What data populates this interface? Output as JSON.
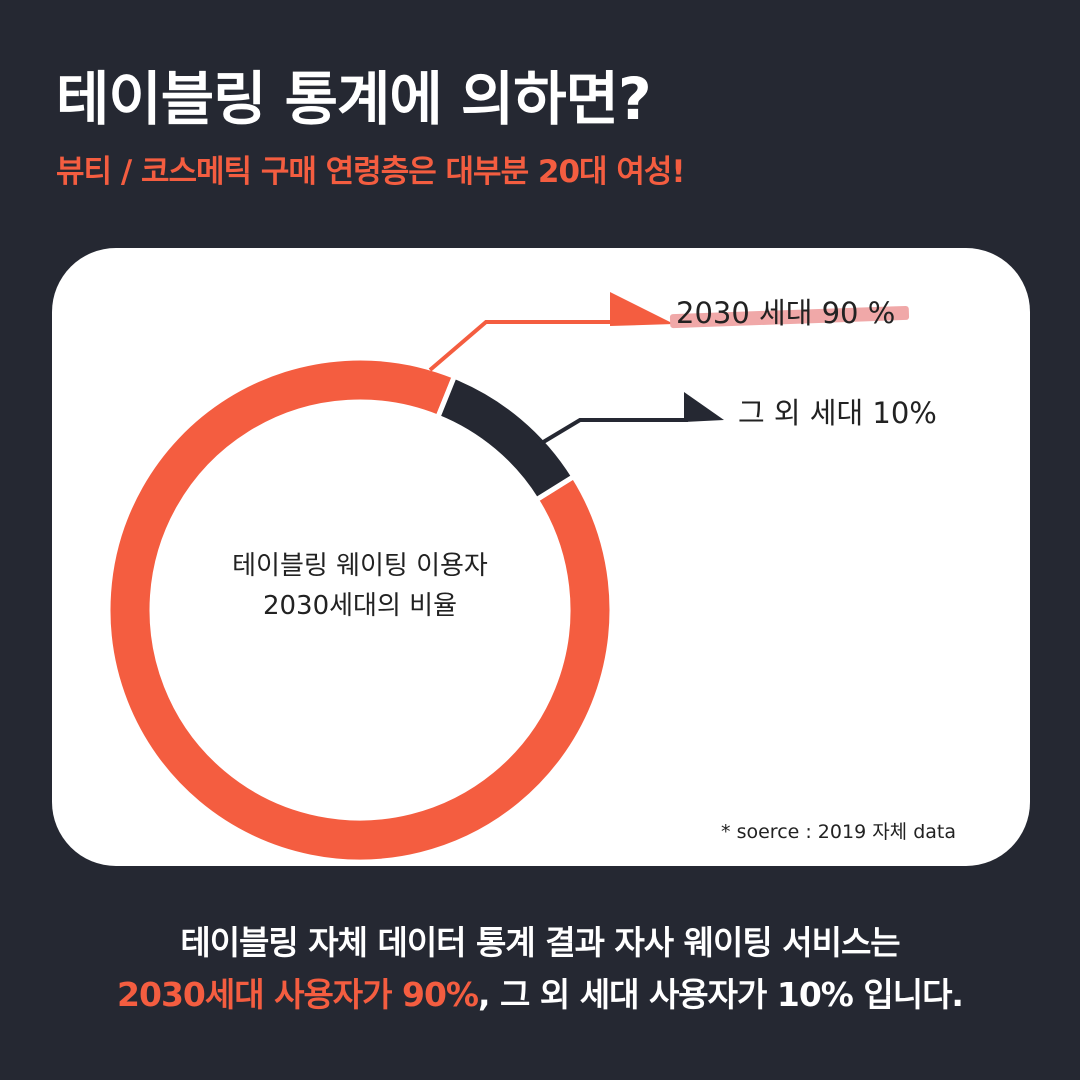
{
  "header": {
    "title": "테이블링 통계에 의하면?",
    "subtitle": "뷰티 / 코스메틱 구매 연령층은 대부분 20대 여성!"
  },
  "chart_data": {
    "type": "pie",
    "variant": "donut",
    "center_label_line1": "테이블링 웨이팅 이용자",
    "center_label_line2": "2030세대의 비율",
    "slices": [
      {
        "label": "2030 세대 90 %",
        "value": 90,
        "color": "#f45d40"
      },
      {
        "label": "그 외 세대 10%",
        "value": 10,
        "color": "#252832"
      }
    ],
    "source": "* soerce : 2019 자체 data"
  },
  "footer": {
    "line1": "테이블링 자체 데이터 통계 결과 자사 웨이팅 서비스는",
    "line2_accent": "2030세대 사용자가 90%",
    "line2_rest": ", 그 외 세대 사용자가 10% 입니다."
  },
  "colors": {
    "background": "#252832",
    "accent": "#f45d40",
    "card": "#ffffff",
    "highlight": "#f0a8a8"
  }
}
